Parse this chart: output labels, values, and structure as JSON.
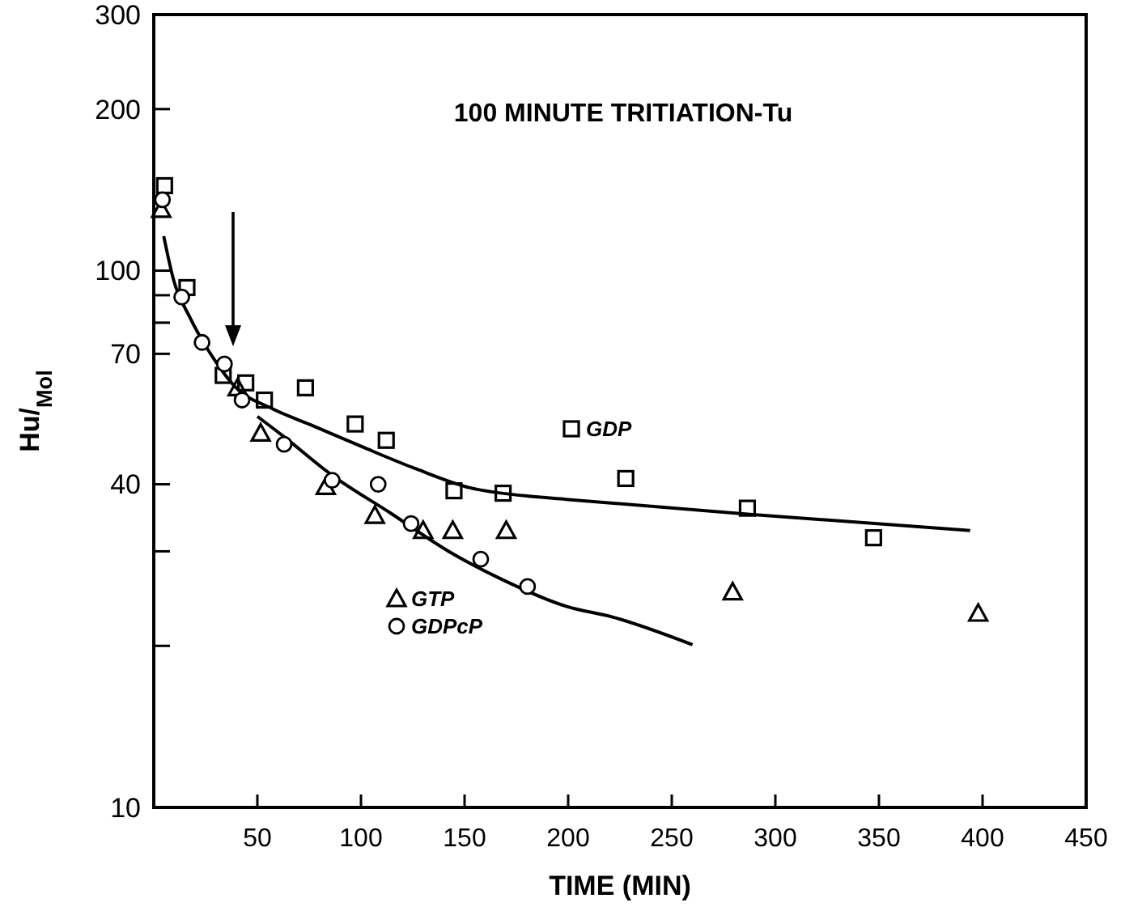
{
  "chart_data": {
    "type": "scatter",
    "title": "100 MINUTE TRITIATION-Tu",
    "xlabel": "TIME (MIN)",
    "ylabel": "Hu/$_{Mol}$",
    "log": "y",
    "xlim": [
      0,
      450
    ],
    "ylim": [
      10,
      300
    ],
    "xticks": [
      50,
      100,
      150,
      200,
      250,
      300,
      350,
      400,
      450
    ],
    "yticks": [
      10,
      {
        "value": 20,
        "label": null
      },
      {
        "value": 30,
        "label": null
      },
      40,
      70,
      {
        "value": 80,
        "label": null
      },
      {
        "value": 90,
        "label": null
      },
      100,
      200,
      300
    ],
    "legend": "center",
    "grid": false,
    "series": [
      {
        "name": "GDP",
        "marker": "square",
        "color": "#000000",
        "x": [
          5.2,
          16,
          33.5,
          44.4,
          53.4,
          73.2,
          97.2,
          112.2,
          144.9,
          168.6,
          227.8,
          286.5,
          347.4
        ],
        "values": [
          144,
          93,
          63.8,
          61.8,
          57.4,
          60.5,
          51.8,
          48.3,
          38.9,
          38.5,
          41,
          36.1,
          31.8
        ]
      },
      {
        "name": "GTP",
        "marker": "triangle",
        "color": "#000000",
        "x": [
          3.6,
          40.5,
          51.6,
          83,
          106.7,
          130,
          144.3,
          170.1,
          279.4,
          397.9
        ],
        "values": [
          130,
          60.5,
          49.8,
          39.6,
          35,
          32.8,
          32.8,
          32.8,
          25.2,
          23
        ]
      },
      {
        "name": "GDPcP",
        "marker": "circle",
        "color": "#000000",
        "x": [
          4.2,
          13.5,
          23.3,
          34.1,
          42.6,
          62.9,
          86.1,
          108.3,
          124.2,
          157.8,
          180.4
        ],
        "values": [
          135.6,
          89.3,
          73.5,
          67,
          57.4,
          47.5,
          40.7,
          40,
          33.8,
          29,
          25.8
        ]
      },
      {
        "type": "line",
        "marker": "none",
        "color": "#000000",
        "x": [
          4.8,
          9.6,
          17.3,
          29,
          39.2,
          57.3,
          75.3,
          101,
          126.8,
          152.6,
          178.3,
          199,
          286.5,
          394
        ],
        "values": [
          116,
          96,
          82,
          68.5,
          60.8,
          55.3,
          51.7,
          46.9,
          42.7,
          39.4,
          38.1,
          37.5,
          35.2,
          32.8
        ]
      },
      {
        "type": "line",
        "marker": "none",
        "color": "#000000",
        "x": [
          50,
          62.4,
          85.6,
          114,
          142.3,
          168,
          199,
          222,
          260
        ],
        "values": [
          53.5,
          49.2,
          41.7,
          35.4,
          30,
          26.6,
          23.7,
          22.6,
          20.1
        ]
      }
    ]
  }
}
